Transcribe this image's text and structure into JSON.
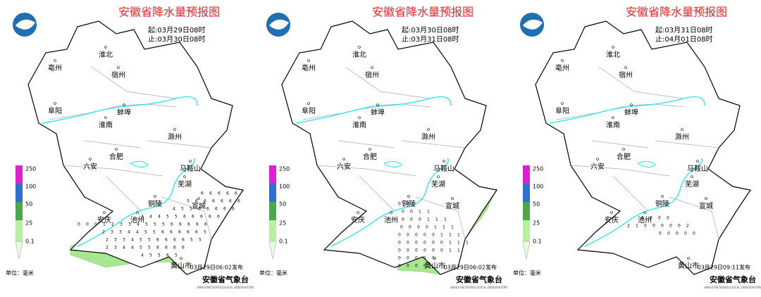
{
  "panels": [
    {
      "title": "安徽省降水量预报图",
      "start": "起:03月29日08时",
      "end": "止:03月30日08时",
      "issued": "03月29日06:02发布",
      "grid_values": [
        [
          6,
          6,
          6,
          6,
          6
        ],
        [
          5,
          6,
          6,
          6,
          6,
          6,
          6
        ],
        [
          4,
          5,
          5,
          6,
          6,
          6,
          6,
          6
        ],
        [
          4,
          4,
          4,
          5,
          5,
          6,
          6,
          6,
          6,
          6
        ],
        [
          0,
          0,
          0,
          1,
          2,
          3,
          3,
          4,
          5,
          5,
          5,
          6,
          6,
          6,
          6,
          6
        ],
        [
          2,
          3,
          3,
          4,
          4,
          5,
          5,
          6,
          6,
          6,
          6,
          6,
          5
        ],
        [
          2,
          3,
          3,
          4,
          5,
          5,
          6,
          6,
          6,
          6,
          5,
          5
        ],
        [
          2,
          3,
          4,
          4,
          5,
          5,
          6,
          6,
          6,
          6
        ],
        [
          4,
          5,
          5,
          6,
          5
        ]
      ]
    },
    {
      "title": "安徽省降水量预报图",
      "start": "起:03月30日08时",
      "end": "止:03月31日08时",
      "issued": "03月29日06:02发布",
      "grid_values": [
        [
          0,
          0
        ],
        [
          0,
          0,
          1,
          1
        ],
        [
          0,
          0,
          0,
          1,
          1,
          1
        ],
        [
          0,
          0,
          0,
          0,
          1,
          1,
          1
        ],
        [
          0,
          0,
          0,
          0,
          0,
          1,
          1,
          1
        ],
        [
          0,
          0,
          0,
          0,
          0,
          0,
          1,
          1,
          1
        ],
        [
          0,
          0,
          0,
          0,
          0,
          0,
          1,
          1
        ],
        [
          0,
          0,
          0,
          0,
          0
        ],
        [
          0,
          0,
          0,
          0
        ]
      ]
    },
    {
      "title": "安徽省降水量预报图",
      "start": "起:03月31日08时",
      "end": "止:04月01日08时",
      "issued": "03月29日09:11发布",
      "grid_values": [
        [
          0,
          0,
          0,
          0
        ],
        [
          2,
          1,
          0,
          0,
          0,
          0,
          0,
          2
        ],
        [
          0,
          0,
          0,
          0,
          0
        ]
      ]
    }
  ],
  "cities": [
    "淮北",
    "亳州",
    "宿州",
    "阜阳",
    "蚌埠",
    "淮南",
    "滁州",
    "六安",
    "合肥",
    "马鞍山",
    "芜湖",
    "铜陵",
    "宣城",
    "安庆",
    "池州",
    "黄山市"
  ],
  "legend": {
    "levels": [
      250,
      100,
      50,
      25,
      0.1
    ],
    "unit": "单位：毫米"
  },
  "agency": "安徽省气象台",
  "agency_en": "ANHUI METEOROLOGICAL OBSERVATORY"
}
